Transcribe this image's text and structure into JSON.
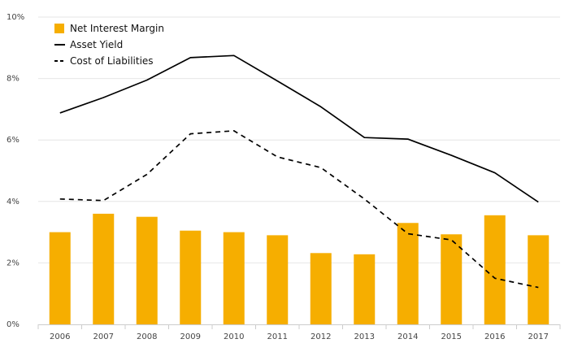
{
  "chart_data": {
    "type": "bar+line",
    "categories": [
      "2006",
      "2007",
      "2008",
      "2009",
      "2010",
      "2011",
      "2012",
      "2013",
      "2014",
      "2015",
      "2016",
      "2017"
    ],
    "series": [
      {
        "name": "Net Interest Margin",
        "kind": "bar",
        "color": "#f6ae00",
        "values": [
          3.0,
          3.6,
          3.5,
          3.05,
          3.0,
          2.9,
          2.32,
          2.28,
          3.3,
          2.93,
          3.55,
          2.9
        ]
      },
      {
        "name": "Asset Yield",
        "kind": "line",
        "style": "solid",
        "color": "#000000",
        "values": [
          6.88,
          7.38,
          7.95,
          8.68,
          8.75,
          7.92,
          7.08,
          6.08,
          6.03,
          5.5,
          4.93,
          3.98
        ]
      },
      {
        "name": "Cost of Liabilities",
        "kind": "line",
        "style": "dashed",
        "color": "#000000",
        "values": [
          4.08,
          4.03,
          4.88,
          6.2,
          6.3,
          5.45,
          5.1,
          4.08,
          2.95,
          2.75,
          1.5,
          1.2
        ]
      }
    ],
    "y_ticks": [
      "0%",
      "2%",
      "4%",
      "6%",
      "8%",
      "10%"
    ],
    "ylim": [
      0,
      10
    ],
    "grid": true,
    "legend_position": "top-left"
  }
}
